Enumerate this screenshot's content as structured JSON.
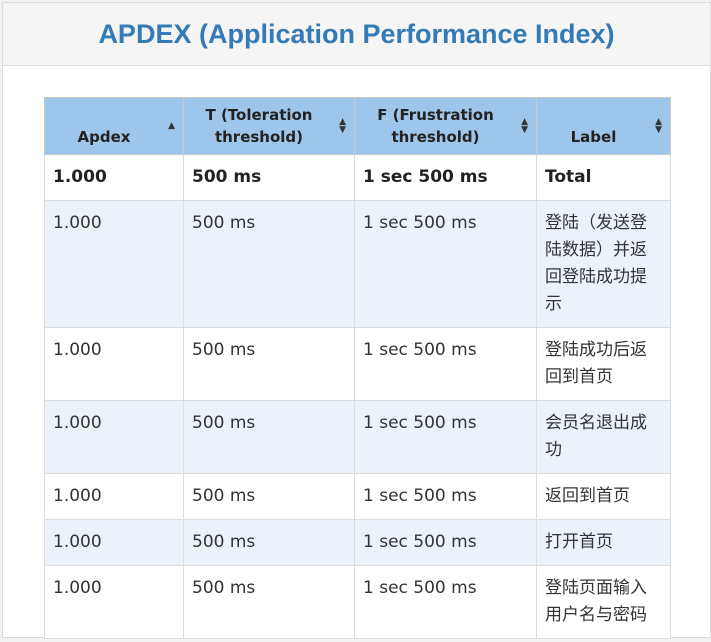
{
  "header": {
    "title": "APDEX (Application Performance Index)"
  },
  "table": {
    "columns": [
      {
        "label": "Apdex",
        "sort": "asc"
      },
      {
        "label": "T (Toleration threshold)",
        "sort": "both"
      },
      {
        "label": "F (Frustration threshold)",
        "sort": "both"
      },
      {
        "label": "Label",
        "sort": "both"
      }
    ],
    "total": {
      "apdex": "1.000",
      "t": "500 ms",
      "f": "1 sec 500 ms",
      "label": "Total"
    },
    "rows": [
      {
        "apdex": "1.000",
        "t": "500 ms",
        "f": "1 sec 500 ms",
        "label": "登陆（发送登陆数据）并返回登陆成功提示"
      },
      {
        "apdex": "1.000",
        "t": "500 ms",
        "f": "1 sec 500 ms",
        "label": "登陆成功后返回到首页"
      },
      {
        "apdex": "1.000",
        "t": "500 ms",
        "f": "1 sec 500 ms",
        "label": "会员名退出成功"
      },
      {
        "apdex": "1.000",
        "t": "500 ms",
        "f": "1 sec 500 ms",
        "label": "返回到首页"
      },
      {
        "apdex": "1.000",
        "t": "500 ms",
        "f": "1 sec 500 ms",
        "label": "打开首页"
      },
      {
        "apdex": "1.000",
        "t": "500 ms",
        "f": "1 sec 500 ms",
        "label": "登陆页面输入用户名与密码"
      }
    ]
  }
}
